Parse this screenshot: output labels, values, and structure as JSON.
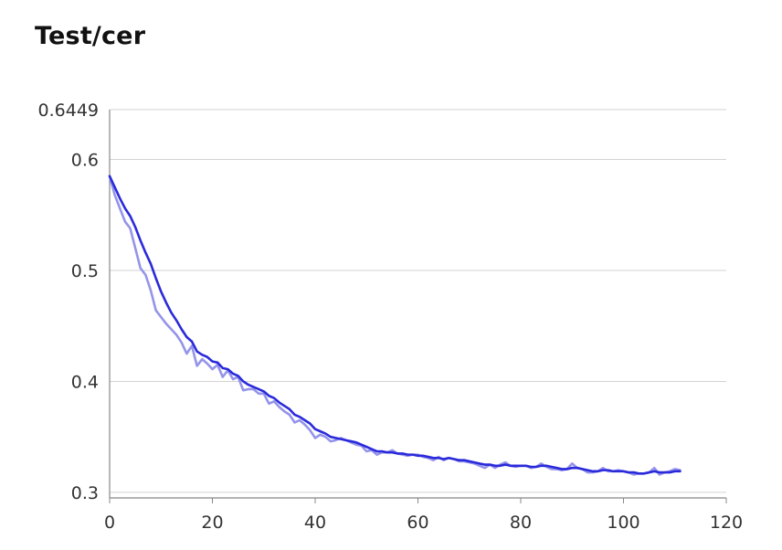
{
  "title": "Test/cer",
  "chart_data": {
    "type": "line",
    "title": "Test/cer",
    "xlabel": "",
    "ylabel": "",
    "xlim": [
      0,
      120
    ],
    "ylim": [
      0.295,
      0.6449
    ],
    "x_ticks": [
      0,
      20,
      40,
      60,
      80,
      100,
      120
    ],
    "y_ticks": [
      0.3,
      0.4,
      0.5,
      0.6,
      0.6449
    ],
    "y_tick_labels": [
      "0.3",
      "0.4",
      "0.5",
      "0.6",
      "0.6449"
    ],
    "x_tick_labels": [
      "0",
      "20",
      "40",
      "60",
      "80",
      "100",
      "120"
    ],
    "grid": "horizontal",
    "legend": "none",
    "colors": {
      "smoothed": "#2a2adb",
      "raw": "#9494ea",
      "grid": "#d3d3d3",
      "axis": "#888888"
    },
    "series": [
      {
        "x": [
          0,
          1,
          2,
          3,
          4,
          5,
          6,
          7,
          8,
          9,
          10,
          11,
          12,
          13,
          14,
          15,
          16,
          17,
          18,
          19,
          20,
          21,
          22,
          23,
          24,
          25,
          26,
          27,
          28,
          29,
          30,
          31,
          32,
          33,
          34,
          35,
          36,
          37,
          38,
          39,
          40,
          41,
          42,
          43,
          44,
          45,
          46,
          47,
          48,
          49,
          50,
          51,
          52,
          53,
          54,
          55,
          56,
          57,
          58,
          59,
          60,
          61,
          62,
          63,
          64,
          65,
          66,
          67,
          68,
          69,
          70,
          71,
          72,
          73,
          74,
          75,
          76,
          77,
          78,
          79,
          80,
          81,
          82,
          83,
          84,
          85,
          86,
          87,
          88,
          89,
          90,
          91,
          92,
          93,
          94,
          95,
          96,
          97,
          98,
          99,
          100,
          101,
          102,
          103,
          104,
          105,
          106,
          107,
          108,
          109,
          110,
          111
        ],
        "values": [
          0.585,
          0.568,
          0.556,
          0.544,
          0.538,
          0.52,
          0.502,
          0.496,
          0.482,
          0.464,
          0.458,
          0.452,
          0.447,
          0.442,
          0.435,
          0.425,
          0.432,
          0.414,
          0.42,
          0.416,
          0.411,
          0.415,
          0.404,
          0.41,
          0.402,
          0.404,
          0.392,
          0.393,
          0.393,
          0.389,
          0.389,
          0.38,
          0.382,
          0.377,
          0.373,
          0.37,
          0.363,
          0.365,
          0.361,
          0.356,
          0.349,
          0.352,
          0.35,
          0.346,
          0.347,
          0.349,
          0.347,
          0.345,
          0.343,
          0.342,
          0.337,
          0.338,
          0.334,
          0.336,
          0.336,
          0.338,
          0.335,
          0.334,
          0.333,
          0.334,
          0.334,
          0.332,
          0.331,
          0.329,
          0.332,
          0.329,
          0.331,
          0.33,
          0.328,
          0.328,
          0.327,
          0.326,
          0.324,
          0.322,
          0.325,
          0.322,
          0.325,
          0.327,
          0.324,
          0.323,
          0.324,
          0.324,
          0.322,
          0.323,
          0.326,
          0.323,
          0.321,
          0.321,
          0.32,
          0.321,
          0.326,
          0.322,
          0.321,
          0.318,
          0.318,
          0.319,
          0.322,
          0.319,
          0.319,
          0.32,
          0.319,
          0.318,
          0.316,
          0.317,
          0.317,
          0.318,
          0.322,
          0.316,
          0.318,
          0.319,
          0.321,
          0.32
        ]
      },
      {
        "x": [
          0,
          1,
          2,
          3,
          4,
          5,
          6,
          7,
          8,
          9,
          10,
          11,
          12,
          13,
          14,
          15,
          16,
          17,
          18,
          19,
          20,
          21,
          22,
          23,
          24,
          25,
          26,
          27,
          28,
          29,
          30,
          31,
          32,
          33,
          34,
          35,
          36,
          37,
          38,
          39,
          40,
          41,
          42,
          43,
          44,
          45,
          46,
          47,
          48,
          49,
          50,
          51,
          52,
          53,
          54,
          55,
          56,
          57,
          58,
          59,
          60,
          61,
          62,
          63,
          64,
          65,
          66,
          67,
          68,
          69,
          70,
          71,
          72,
          73,
          74,
          75,
          76,
          77,
          78,
          79,
          80,
          81,
          82,
          83,
          84,
          85,
          86,
          87,
          88,
          89,
          90,
          91,
          92,
          93,
          94,
          95,
          96,
          97,
          98,
          99,
          100,
          101,
          102,
          103,
          104,
          105,
          106,
          107,
          108,
          109,
          110,
          111
        ],
        "values": [
          0.585,
          0.575,
          0.565,
          0.556,
          0.549,
          0.539,
          0.527,
          0.516,
          0.506,
          0.493,
          0.481,
          0.471,
          0.462,
          0.455,
          0.447,
          0.44,
          0.436,
          0.427,
          0.424,
          0.422,
          0.418,
          0.417,
          0.412,
          0.411,
          0.407,
          0.405,
          0.4,
          0.397,
          0.395,
          0.393,
          0.391,
          0.387,
          0.385,
          0.381,
          0.378,
          0.375,
          0.37,
          0.368,
          0.365,
          0.362,
          0.357,
          0.355,
          0.353,
          0.35,
          0.349,
          0.348,
          0.347,
          0.346,
          0.345,
          0.343,
          0.341,
          0.339,
          0.337,
          0.337,
          0.336,
          0.336,
          0.335,
          0.335,
          0.334,
          0.334,
          0.333,
          0.333,
          0.332,
          0.331,
          0.331,
          0.33,
          0.331,
          0.33,
          0.329,
          0.329,
          0.328,
          0.327,
          0.326,
          0.325,
          0.325,
          0.324,
          0.324,
          0.325,
          0.324,
          0.324,
          0.324,
          0.324,
          0.323,
          0.323,
          0.324,
          0.324,
          0.323,
          0.322,
          0.321,
          0.321,
          0.322,
          0.322,
          0.321,
          0.32,
          0.319,
          0.319,
          0.32,
          0.32,
          0.319,
          0.319,
          0.319,
          0.318,
          0.318,
          0.317,
          0.317,
          0.318,
          0.319,
          0.318,
          0.318,
          0.318,
          0.319,
          0.319
        ]
      }
    ]
  }
}
